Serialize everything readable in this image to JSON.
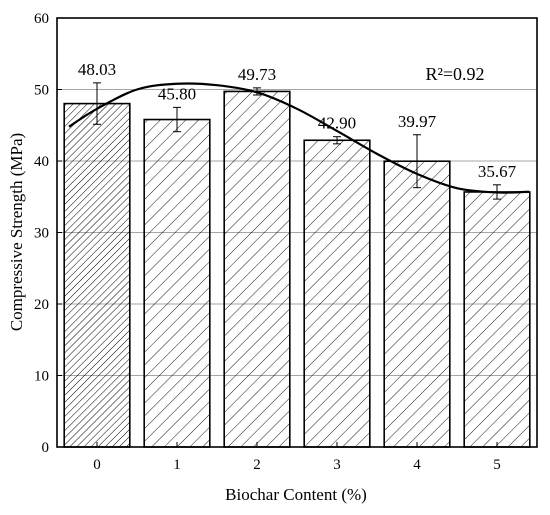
{
  "chart_data": {
    "type": "bar",
    "x_label": "Biochar Content (%)",
    "y_label": "Compressive Strength (MPa)",
    "categories": [
      "0",
      "1",
      "2",
      "3",
      "4",
      "5"
    ],
    "values": [
      48.03,
      45.8,
      49.73,
      42.9,
      39.97,
      35.67
    ],
    "value_labels": [
      "48.03",
      "45.80",
      "49.73",
      "42.90",
      "39.97",
      "35.67"
    ],
    "errors": [
      2.9,
      1.7,
      0.5,
      0.5,
      3.7,
      1.0
    ],
    "trend": {
      "x": [
        -0.35,
        0,
        0.5,
        1,
        1.5,
        2,
        2.5,
        3,
        3.5,
        4,
        4.5,
        5,
        5.4
      ],
      "values": [
        44.8,
        47.3,
        50,
        50.8,
        50.6,
        49.6,
        47.3,
        44.2,
        41,
        38.2,
        36.2,
        35.6,
        35.7
      ]
    },
    "annotation": "R²=0.92",
    "color": "#000000",
    "ylim": [
      0,
      60
    ],
    "yticks": [
      0,
      10,
      20,
      30,
      40,
      50,
      60
    ],
    "grid": true
  }
}
